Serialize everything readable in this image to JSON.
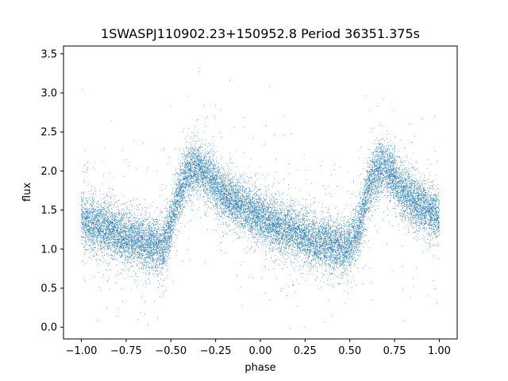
{
  "chart_data": {
    "type": "scatter",
    "title": "1SWASPJ110902.23+150952.8 Period 36351.375s",
    "xlabel": "phase",
    "ylabel": "flux",
    "xlim": [
      -1.1,
      1.1
    ],
    "ylim": [
      -0.15,
      3.6
    ],
    "xticks": [
      -1.0,
      -0.75,
      -0.5,
      -0.25,
      0.0,
      0.25,
      0.5,
      0.75,
      1.0
    ],
    "xtick_labels": [
      "−1.00",
      "−0.75",
      "−0.50",
      "−0.25",
      "0.00",
      "0.25",
      "0.50",
      "0.75",
      "1.00"
    ],
    "yticks": [
      0.0,
      0.5,
      1.0,
      1.5,
      2.0,
      2.5,
      3.0,
      3.5
    ],
    "ytick_labels": [
      "0.0",
      "0.5",
      "1.0",
      "1.5",
      "2.0",
      "2.5",
      "3.0",
      "3.5"
    ],
    "grid": false,
    "marker_color": "#1f77b4",
    "phase_range": [
      -1.0,
      1.0
    ],
    "light_curve": {
      "phase": [
        -1.0,
        -0.9,
        -0.8,
        -0.7,
        -0.6,
        -0.55,
        -0.5,
        -0.45,
        -0.4,
        -0.35,
        -0.3,
        -0.25,
        -0.2,
        -0.1,
        0.0,
        0.1,
        0.2,
        0.3,
        0.4,
        0.45,
        0.5,
        0.55,
        0.6,
        0.65,
        0.7,
        0.75,
        0.8,
        0.9,
        1.0
      ],
      "flux": [
        1.35,
        1.28,
        1.2,
        1.12,
        1.05,
        1.0,
        1.3,
        1.75,
        2.0,
        2.05,
        1.95,
        1.82,
        1.68,
        1.55,
        1.42,
        1.28,
        1.2,
        1.12,
        1.05,
        1.02,
        1.05,
        1.25,
        1.75,
        2.0,
        2.05,
        1.9,
        1.72,
        1.55,
        1.42
      ],
      "scatter_sigma": 0.17,
      "approx_points": 18000
    }
  }
}
